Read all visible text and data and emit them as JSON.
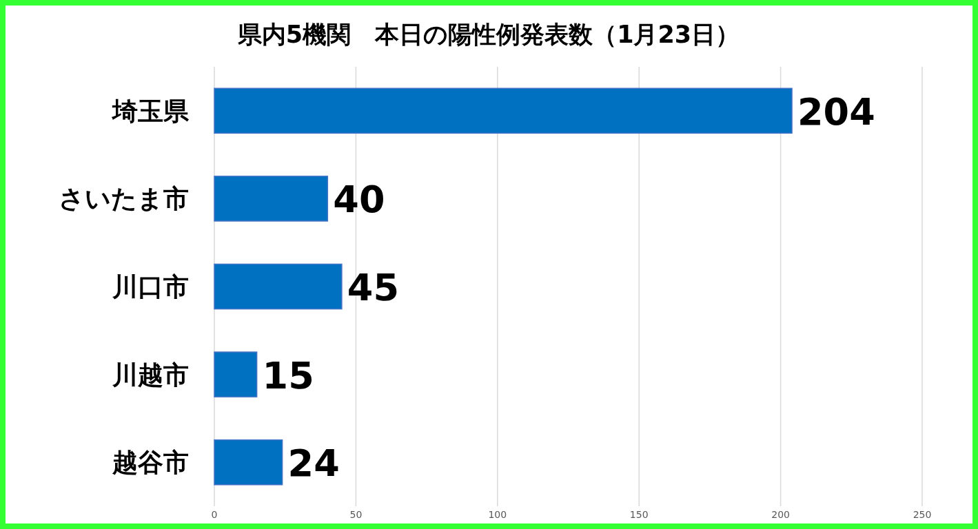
{
  "chart_data": {
    "type": "bar",
    "orientation": "horizontal",
    "title": "県内5機関　本日の陽性例発表数（1月23日）",
    "categories": [
      "埼玉県",
      "さいたま市",
      "川口市",
      "川越市",
      "越谷市"
    ],
    "values": [
      204,
      40,
      45,
      15,
      24
    ],
    "color": "#0070c0",
    "xlim": [
      0,
      250
    ],
    "xticks": [
      0,
      50,
      100,
      150,
      200,
      250
    ],
    "grid": "x",
    "data_labels": true
  }
}
